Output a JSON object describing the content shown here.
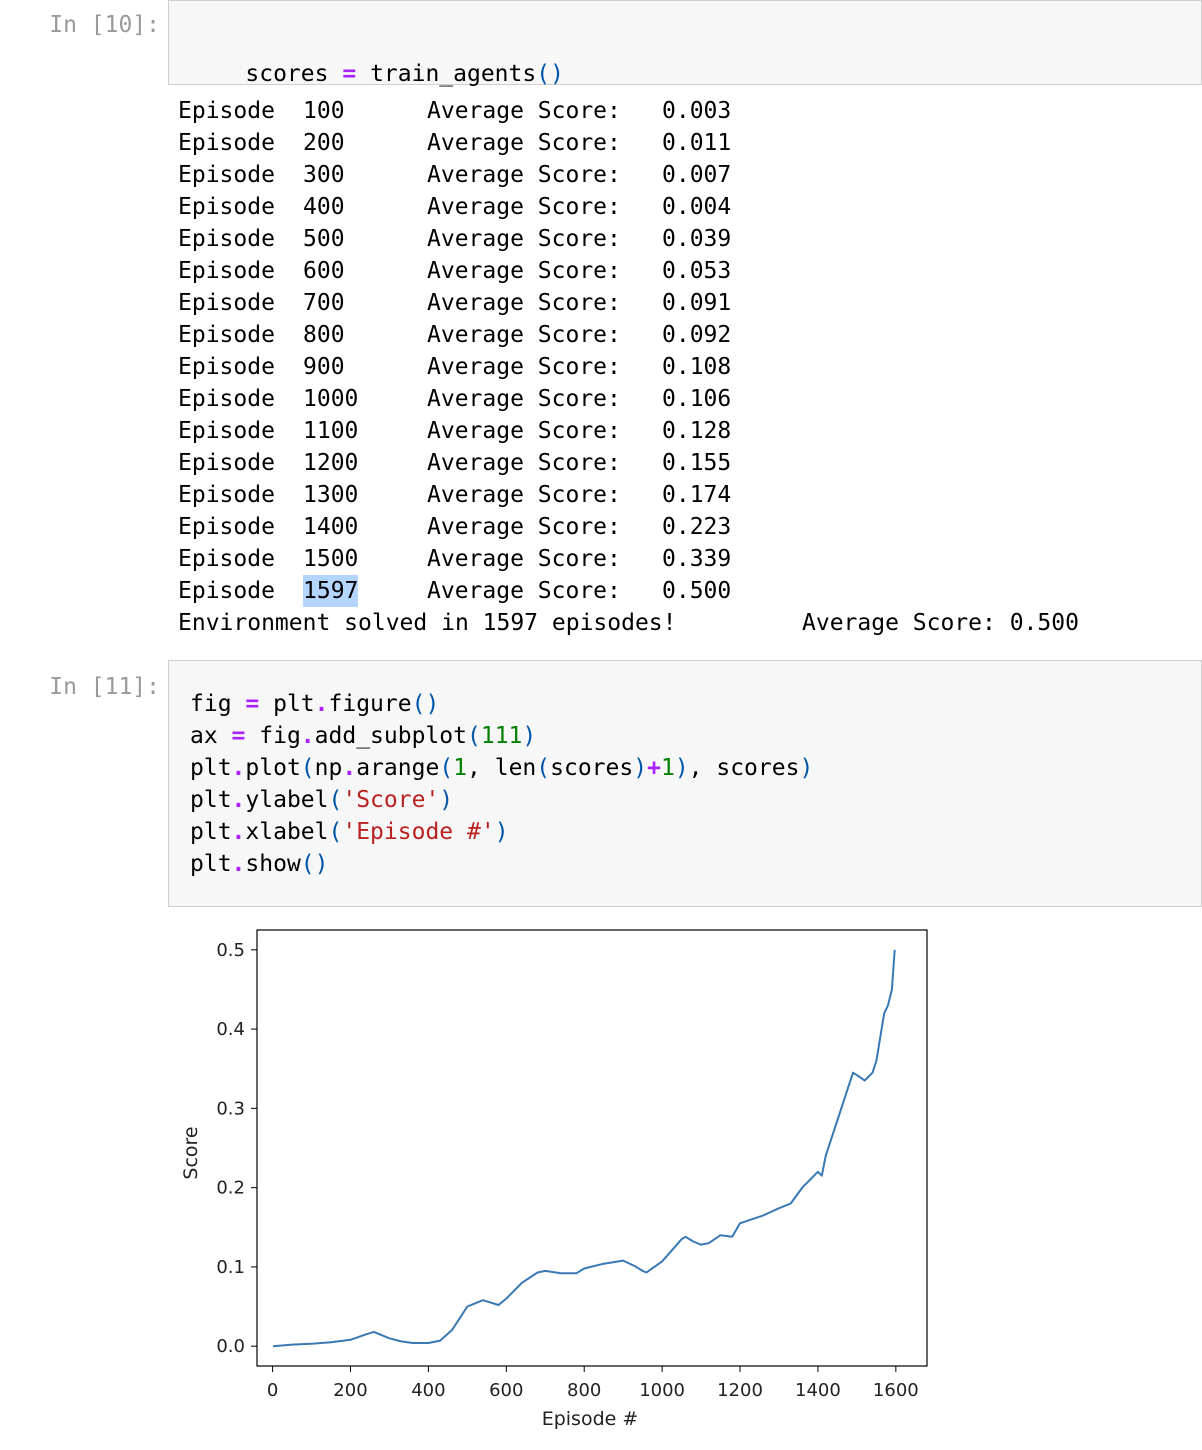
{
  "cells": [
    {
      "prompt": "In [10]:",
      "code": {
        "var": "scores",
        "op": "=",
        "fn": "train_agents",
        "parens": "()"
      },
      "output": {
        "label_episode": "Episode",
        "label_avg": "Average Score:",
        "rows": [
          {
            "episode": "100",
            "score": "0.003"
          },
          {
            "episode": "200",
            "score": "0.011"
          },
          {
            "episode": "300",
            "score": "0.007"
          },
          {
            "episode": "400",
            "score": "0.004"
          },
          {
            "episode": "500",
            "score": "0.039"
          },
          {
            "episode": "600",
            "score": "0.053"
          },
          {
            "episode": "700",
            "score": "0.091"
          },
          {
            "episode": "800",
            "score": "0.092"
          },
          {
            "episode": "900",
            "score": "0.108"
          },
          {
            "episode": "1000",
            "score": "0.106"
          },
          {
            "episode": "1100",
            "score": "0.128"
          },
          {
            "episode": "1200",
            "score": "0.155"
          },
          {
            "episode": "1300",
            "score": "0.174"
          },
          {
            "episode": "1400",
            "score": "0.223"
          },
          {
            "episode": "1500",
            "score": "0.339"
          },
          {
            "episode": "1597",
            "score": "0.500",
            "highlighted": true
          }
        ],
        "solved_text": "Environment solved in 1597 episodes!",
        "solved_avg": "Average Score: 0.500"
      }
    },
    {
      "prompt": "In [11]:",
      "code_lines": [
        "fig = plt.figure()",
        "ax = fig.add_subplot(111)",
        "plt.plot(np.arange(1, len(scores)+1), scores)",
        "plt.ylabel('Score')",
        "plt.xlabel('Episode #')",
        "plt.show()"
      ]
    }
  ],
  "colors": {
    "line": "#3a78b4",
    "selection": "#b4d5fe",
    "keyword_op": "#aa22ff",
    "string": "#ba2121",
    "number": "#008000",
    "paren": "#0055aa",
    "prompt": "#9a9a9a"
  },
  "chart_data": {
    "type": "line",
    "xlabel": "Episode #",
    "ylabel": "Score",
    "xlim": [
      -40,
      1680
    ],
    "ylim": [
      -0.025,
      0.525
    ],
    "x_ticks": [
      0,
      200,
      400,
      600,
      800,
      1000,
      1200,
      1400,
      1600
    ],
    "y_ticks": [
      0.0,
      0.1,
      0.2,
      0.3,
      0.4,
      0.5
    ],
    "x_tick_labels": [
      "0",
      "200",
      "400",
      "600",
      "800",
      "1000",
      "1200",
      "1400",
      "1600"
    ],
    "y_tick_labels": [
      "0.0",
      "0.1",
      "0.2",
      "0.3",
      "0.4",
      "0.5"
    ],
    "grid": false,
    "series": [
      {
        "x": [
          1,
          50,
          100,
          150,
          200,
          240,
          260,
          300,
          330,
          360,
          400,
          430,
          460,
          480,
          500,
          540,
          560,
          580,
          600,
          640,
          680,
          700,
          740,
          780,
          800,
          850,
          900,
          930,
          950,
          960,
          980,
          1000,
          1020,
          1050,
          1060,
          1080,
          1100,
          1120,
          1150,
          1180,
          1200,
          1230,
          1260,
          1300,
          1330,
          1360,
          1380,
          1400,
          1410,
          1420,
          1440,
          1460,
          1480,
          1490,
          1500,
          1520,
          1540,
          1550,
          1560,
          1570,
          1580,
          1590,
          1597
        ],
        "y": [
          0.0,
          0.002,
          0.003,
          0.005,
          0.008,
          0.015,
          0.018,
          0.01,
          0.006,
          0.004,
          0.004,
          0.007,
          0.02,
          0.035,
          0.05,
          0.058,
          0.055,
          0.052,
          0.06,
          0.08,
          0.093,
          0.095,
          0.092,
          0.092,
          0.098,
          0.104,
          0.108,
          0.101,
          0.095,
          0.093,
          0.1,
          0.107,
          0.118,
          0.135,
          0.138,
          0.132,
          0.128,
          0.13,
          0.14,
          0.138,
          0.155,
          0.16,
          0.165,
          0.174,
          0.18,
          0.2,
          0.21,
          0.22,
          0.215,
          0.24,
          0.27,
          0.3,
          0.33,
          0.345,
          0.342,
          0.335,
          0.345,
          0.36,
          0.39,
          0.42,
          0.43,
          0.45,
          0.5
        ]
      }
    ]
  }
}
